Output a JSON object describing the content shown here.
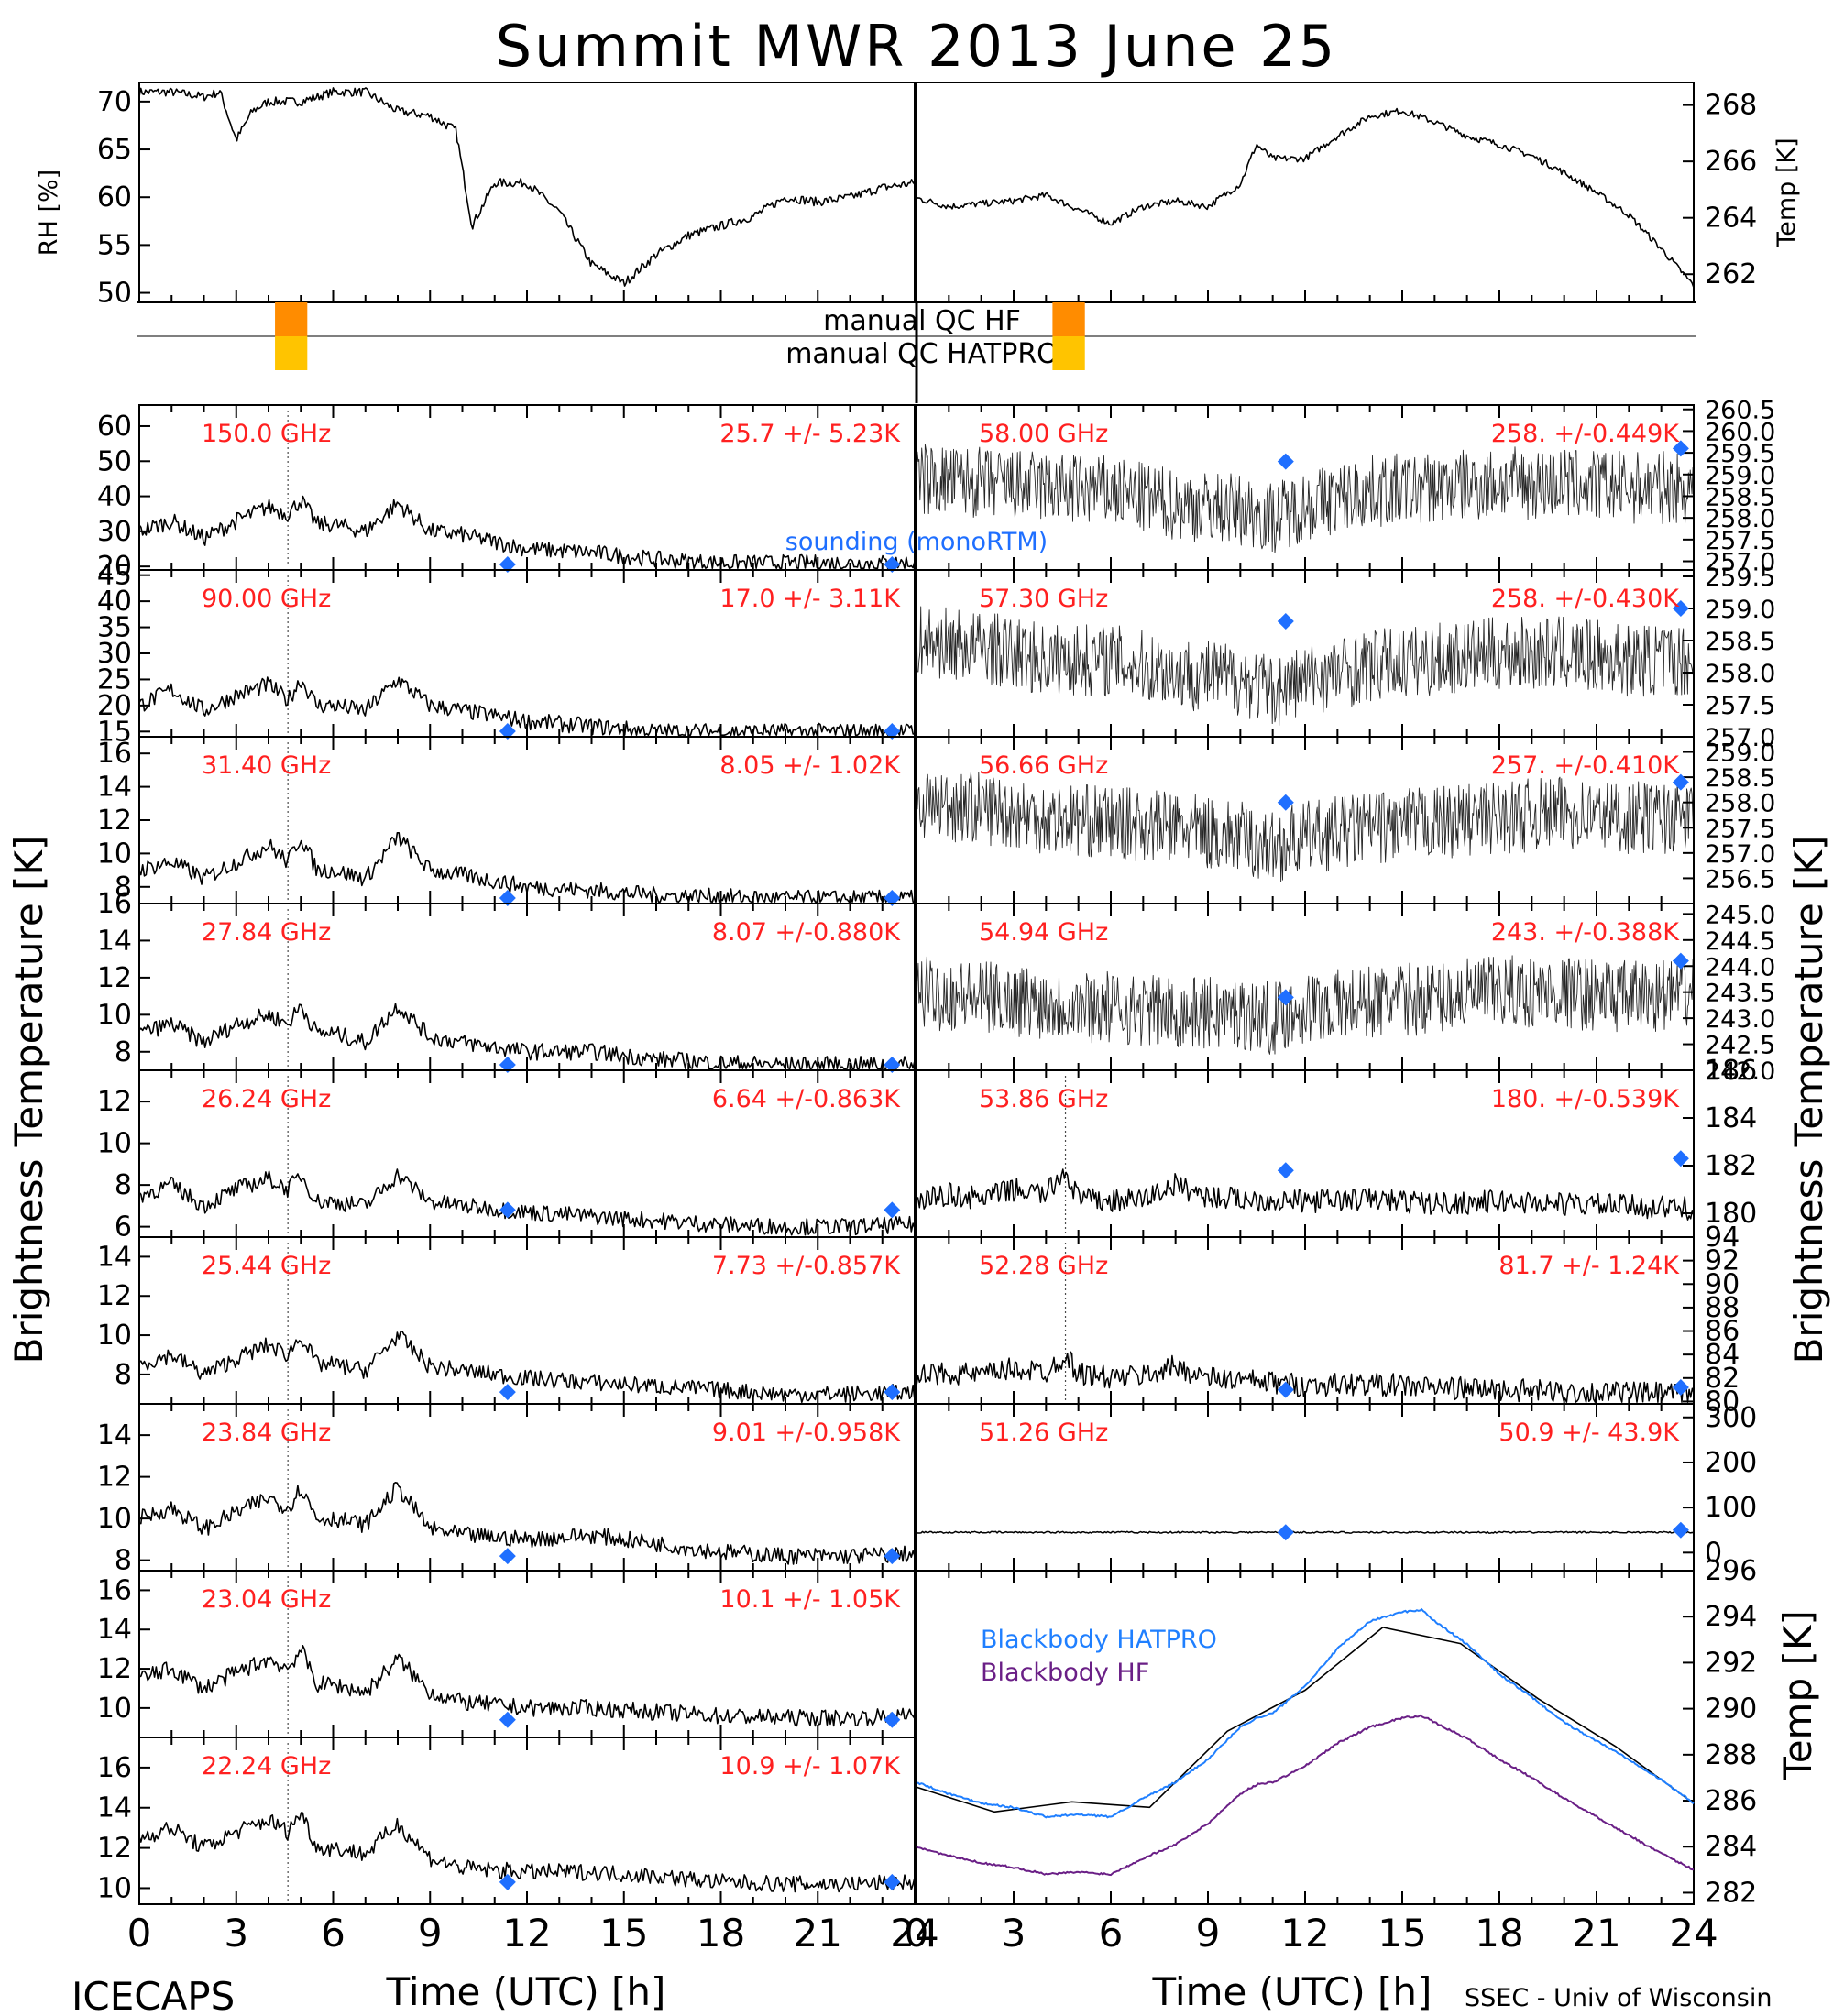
{
  "title": "Summit MWR 2013 June 25",
  "footer": {
    "left": "ICECAPS",
    "right": "SSEC - Univ of Wisconsin"
  },
  "colors": {
    "label_red": "#ff2020",
    "sounding_blue": "#1f6fff",
    "hatpro": "#1f7fff",
    "hf": "#6a1f86",
    "qc_hf": "#ff8c00",
    "qc_hatpro": "#ffc400"
  },
  "axis_labels": {
    "brightness": "Brightness Temperature [K]",
    "time": "Time (UTC) [h]",
    "rh": "RH [%]",
    "temp": "Temp [K]"
  },
  "qc": {
    "hf_label": "manual QC HF",
    "hatpro_label": "manual QC HATPRO"
  },
  "sounding_label": "sounding (monoRTM)",
  "chart_data": [
    {
      "type": "line",
      "panel": "rh",
      "xlabel": "",
      "ylabel": "RH [%]",
      "xlim": [
        0,
        24
      ],
      "ylim": [
        49,
        72
      ],
      "yticks": [
        "70",
        "65",
        "60",
        "55",
        "50"
      ],
      "x": [
        0,
        1,
        2,
        2.5,
        3,
        3.5,
        4,
        5,
        6,
        7,
        8,
        9,
        9.8,
        10.3,
        11,
        12,
        13,
        14,
        15,
        16,
        17,
        18,
        19,
        20,
        21,
        22,
        23,
        24
      ],
      "values": [
        71,
        71,
        70.5,
        71,
        66,
        69,
        70,
        70,
        71,
        71,
        69,
        68.5,
        67,
        57,
        61.5,
        61.5,
        58.5,
        53,
        51,
        54,
        56,
        57,
        58,
        60,
        59.5,
        60,
        61,
        61.5
      ]
    },
    {
      "type": "line",
      "panel": "temp",
      "xlabel": "",
      "ylabel": "Temp [K]",
      "xlim": [
        0,
        24
      ],
      "ylim": [
        261,
        268.8
      ],
      "yticks": [
        "268",
        "266",
        "264",
        "262"
      ],
      "x": [
        0,
        1,
        2,
        3,
        4,
        5,
        6,
        7,
        8,
        9,
        10,
        10.5,
        11,
        12,
        13,
        14,
        15,
        16,
        17,
        18,
        19,
        20,
        21,
        22,
        23,
        24
      ],
      "values": [
        264.7,
        264.4,
        264.5,
        264.6,
        264.8,
        264.3,
        263.8,
        264.4,
        264.6,
        264.4,
        265.2,
        266.6,
        266.1,
        266.1,
        266.9,
        267.6,
        267.8,
        267.4,
        266.9,
        266.6,
        266.2,
        265.6,
        264.9,
        264.1,
        262.9,
        261.6
      ]
    },
    {
      "type": "line",
      "panel": "L1",
      "channel": "150.0 GHz",
      "stat": "25.7 +/- 5.23K",
      "ylim": [
        19,
        66
      ],
      "yticks": [
        "60",
        "50",
        "40",
        "30",
        "20"
      ],
      "x": [
        0,
        1,
        2,
        3,
        4,
        4.6,
        5,
        5.5,
        6,
        7,
        8,
        9,
        10,
        12,
        14,
        16,
        18,
        20,
        22,
        24
      ],
      "values": [
        30,
        33,
        28,
        33,
        37,
        35,
        39,
        32,
        32,
        30,
        38,
        30,
        29,
        25,
        24,
        22,
        21,
        21,
        21,
        21
      ],
      "sounding": [
        [
          11.4,
          20.5
        ],
        [
          23.3,
          20.5
        ]
      ]
    },
    {
      "type": "line",
      "panel": "L2",
      "channel": "90.00 GHz",
      "stat": "17.0 +/- 3.11K",
      "ylim": [
        14,
        46
      ],
      "yticks": [
        "45",
        "40",
        "35",
        "30",
        "25",
        "20",
        "15"
      ],
      "x": [
        0,
        1,
        2,
        3,
        4,
        4.6,
        5,
        5.5,
        6,
        7,
        8,
        9,
        10,
        12,
        14,
        16,
        18,
        20,
        22,
        24
      ],
      "values": [
        20,
        23,
        19,
        22,
        24,
        21,
        25,
        20,
        20,
        19,
        25,
        20,
        19,
        17,
        16,
        15,
        15,
        15,
        15,
        15
      ],
      "sounding": [
        [
          11.4,
          14.8
        ],
        [
          23.3,
          14.8
        ]
      ]
    },
    {
      "type": "line",
      "panel": "L3",
      "channel": "31.40 GHz",
      "stat": "8.05 +/- 1.02K",
      "ylim": [
        7,
        17
      ],
      "yticks": [
        "16",
        "14",
        "12",
        "10",
        "8"
      ],
      "x": [
        0,
        1,
        2,
        3,
        4,
        4.6,
        5,
        5.5,
        6,
        7,
        8,
        9,
        10,
        12,
        14,
        16,
        18,
        20,
        22,
        24
      ],
      "values": [
        9,
        9.5,
        8.5,
        9.5,
        10.5,
        9.5,
        11,
        9,
        9,
        8.5,
        11,
        9,
        8.7,
        8,
        7.8,
        7.5,
        7.4,
        7.3,
        7.3,
        7.3
      ],
      "sounding": [
        [
          11.4,
          7.3
        ],
        [
          23.3,
          7.3
        ]
      ]
    },
    {
      "type": "line",
      "panel": "L4",
      "channel": "27.84 GHz",
      "stat": "8.07 +/-0.880K",
      "ylim": [
        7,
        16
      ],
      "yticks": [
        "16",
        "14",
        "12",
        "10",
        "8"
      ],
      "x": [
        0,
        1,
        2,
        3,
        4,
        4.6,
        5,
        5.5,
        6,
        7,
        8,
        9,
        10,
        12,
        14,
        16,
        18,
        20,
        22,
        24
      ],
      "values": [
        9,
        9.5,
        8.5,
        9.5,
        10,
        9.5,
        10.5,
        9,
        9,
        8.5,
        10.5,
        8.8,
        8.5,
        8,
        8,
        7.6,
        7.4,
        7.3,
        7.3,
        7.3
      ],
      "sounding": [
        [
          11.4,
          7.2
        ],
        [
          23.3,
          7.2
        ]
      ]
    },
    {
      "type": "line",
      "panel": "L5",
      "channel": "26.24 GHz",
      "stat": "6.64 +/-0.863K",
      "ylim": [
        5.5,
        13.5
      ],
      "yticks": [
        "12",
        "10",
        "8",
        "6"
      ],
      "x": [
        0,
        1,
        2,
        3,
        4,
        4.6,
        5,
        5.5,
        6,
        7,
        8,
        9,
        10,
        12,
        14,
        16,
        18,
        20,
        22,
        24
      ],
      "values": [
        7.5,
        8,
        7,
        7.8,
        8.3,
        7.8,
        8.5,
        7.2,
        7.2,
        7,
        8.5,
        7.2,
        7,
        6.7,
        6.5,
        6.3,
        6.1,
        6,
        6,
        6.1
      ],
      "sounding": [
        [
          11.4,
          6.8
        ],
        [
          23.3,
          6.8
        ]
      ]
    },
    {
      "type": "line",
      "panel": "L6",
      "channel": "25.44 GHz",
      "stat": "7.73 +/-0.857K",
      "ylim": [
        6.5,
        15
      ],
      "yticks": [
        "14",
        "12",
        "10",
        "8"
      ],
      "x": [
        0,
        1,
        2,
        3,
        4,
        4.6,
        5,
        5.5,
        6,
        7,
        8,
        9,
        10,
        12,
        14,
        16,
        18,
        20,
        22,
        24
      ],
      "values": [
        8.5,
        9,
        8,
        8.8,
        9.5,
        9,
        10,
        8.5,
        8.5,
        8.2,
        10,
        8.4,
        8.2,
        7.8,
        7.6,
        7.4,
        7.2,
        7,
        7,
        7.1
      ],
      "sounding": [
        [
          11.4,
          7.1
        ],
        [
          23.3,
          7.1
        ]
      ]
    },
    {
      "type": "line",
      "panel": "L7",
      "channel": "23.84 GHz",
      "stat": "9.01 +/-0.958K",
      "ylim": [
        7.5,
        15.5
      ],
      "yticks": [
        "14",
        "12",
        "10",
        "8"
      ],
      "x": [
        0,
        1,
        2,
        3,
        4,
        4.6,
        5,
        5.5,
        6,
        7,
        8,
        9,
        10,
        12,
        14,
        16,
        18,
        20,
        22,
        24
      ],
      "values": [
        10,
        10.5,
        9.5,
        10.3,
        11,
        10.5,
        11.5,
        10,
        10,
        9.7,
        11.5,
        9.5,
        9.2,
        9,
        9.2,
        8.8,
        8.4,
        8.2,
        8.2,
        8.3
      ],
      "sounding": [
        [
          11.4,
          8.2
        ],
        [
          23.3,
          8.2
        ]
      ]
    },
    {
      "type": "line",
      "panel": "L8",
      "channel": "23.04 GHz",
      "stat": "10.1 +/- 1.05K",
      "ylim": [
        8.5,
        17
      ],
      "yticks": [
        "16",
        "14",
        "12",
        "10"
      ],
      "x": [
        0,
        1,
        2,
        3,
        4,
        4.6,
        5,
        5.5,
        6,
        7,
        8,
        9,
        10,
        12,
        14,
        16,
        18,
        20,
        22,
        24
      ],
      "values": [
        11.5,
        12,
        11,
        11.8,
        12.5,
        12,
        13,
        11.2,
        11.2,
        10.8,
        12.5,
        10.8,
        10.3,
        10,
        10,
        9.8,
        9.6,
        9.5,
        9.5,
        9.6
      ],
      "sounding": [
        [
          11.4,
          9.4
        ],
        [
          23.3,
          9.4
        ]
      ]
    },
    {
      "type": "line",
      "panel": "L9",
      "channel": "22.24 GHz",
      "stat": "10.9 +/- 1.07K",
      "ylim": [
        9.2,
        17.5
      ],
      "yticks": [
        "16",
        "14",
        "12",
        "10"
      ],
      "x": [
        0,
        1,
        2,
        3,
        4,
        4.6,
        5,
        5.5,
        6,
        7,
        8,
        9,
        10,
        12,
        14,
        16,
        18,
        20,
        22,
        24
      ],
      "values": [
        12.5,
        13,
        12,
        12.8,
        13.4,
        12.8,
        13.8,
        12,
        12,
        11.7,
        13.2,
        11.5,
        11,
        10.8,
        10.8,
        10.6,
        10.3,
        10.2,
        10.2,
        10.3
      ],
      "sounding": [
        [
          11.4,
          10.3
        ],
        [
          23.3,
          10.3
        ]
      ]
    },
    {
      "type": "line",
      "panel": "R1",
      "channel": "58.00 GHz",
      "stat": "258. +/-0.449K",
      "ylim": [
        256.8,
        260.6
      ],
      "yticks": [
        "260.5",
        "260.0",
        "259.5",
        "259.0",
        "258.5",
        "258.0",
        "257.5",
        "257.0"
      ],
      "x": [
        0,
        2,
        4,
        6,
        8,
        10,
        11,
        12,
        14,
        16,
        18,
        20,
        22,
        24
      ],
      "values": [
        258.9,
        258.8,
        258.7,
        258.6,
        258.3,
        258.2,
        258.0,
        258.3,
        258.6,
        258.7,
        258.8,
        258.8,
        258.7,
        258.7
      ],
      "sounding": [
        [
          11.4,
          259.3
        ],
        [
          23.6,
          259.6
        ]
      ]
    },
    {
      "type": "line",
      "panel": "R2",
      "channel": "57.30 GHz",
      "stat": "258. +/-0.430K",
      "ylim": [
        257.0,
        259.6
      ],
      "yticks": [
        "259.5",
        "259.0",
        "258.5",
        "258.0",
        "257.5",
        "257.0"
      ],
      "x": [
        0,
        2,
        4,
        6,
        8,
        10,
        11,
        12,
        14,
        16,
        18,
        20,
        22,
        24
      ],
      "values": [
        258.5,
        258.4,
        258.2,
        258.2,
        258.0,
        257.9,
        257.7,
        257.9,
        258.1,
        258.2,
        258.3,
        258.3,
        258.2,
        258.2
      ],
      "sounding": [
        [
          11.4,
          258.8
        ],
        [
          23.6,
          259.0
        ]
      ]
    },
    {
      "type": "line",
      "panel": "R3",
      "channel": "56.66 GHz",
      "stat": "257. +/-0.410K",
      "ylim": [
        256.0,
        259.3
      ],
      "yticks": [
        "259.0",
        "258.5",
        "258.0",
        "257.5",
        "257.0",
        "256.5"
      ],
      "x": [
        0,
        2,
        4,
        6,
        8,
        10,
        11,
        12,
        14,
        16,
        18,
        20,
        22,
        24
      ],
      "values": [
        258.0,
        257.9,
        257.7,
        257.6,
        257.5,
        257.3,
        257.1,
        257.3,
        257.5,
        257.6,
        257.7,
        257.8,
        257.7,
        257.7
      ],
      "sounding": [
        [
          11.4,
          258.0
        ],
        [
          23.6,
          258.4
        ]
      ]
    },
    {
      "type": "line",
      "panel": "R4",
      "channel": "54.94 GHz",
      "stat": "243. +/-0.388K",
      "ylim": [
        242.0,
        245.2
      ],
      "yticks": [
        "245.0",
        "244.5",
        "244.0",
        "243.5",
        "243.0",
        "242.5",
        "242.0"
      ],
      "x": [
        0,
        2,
        4,
        6,
        8,
        10,
        11,
        12,
        14,
        16,
        18,
        20,
        22,
        24
      ],
      "values": [
        243.5,
        243.4,
        243.3,
        243.2,
        243.1,
        243.1,
        243.0,
        243.2,
        243.3,
        243.4,
        243.5,
        243.5,
        243.4,
        243.5
      ],
      "sounding": [
        [
          11.4,
          243.4
        ],
        [
          23.6,
          244.1
        ]
      ]
    },
    {
      "type": "line",
      "panel": "R5",
      "channel": "53.86 GHz",
      "stat": "180. +/-0.539K",
      "ylim": [
        179.0,
        186.0
      ],
      "yticks": [
        "186",
        "184",
        "182",
        "180"
      ],
      "x": [
        0,
        1,
        2,
        3,
        4,
        4.6,
        5,
        6,
        7,
        8,
        9,
        10,
        12,
        14,
        16,
        18,
        20,
        22,
        24
      ],
      "values": [
        180.5,
        180.8,
        180.6,
        181.0,
        180.8,
        181.8,
        180.6,
        180.5,
        180.6,
        181.2,
        180.7,
        180.6,
        180.5,
        180.6,
        180.4,
        180.5,
        180.4,
        180.3,
        180.2
      ],
      "sounding": [
        [
          11.4,
          181.8
        ],
        [
          23.6,
          182.3
        ]
      ]
    },
    {
      "type": "line",
      "panel": "R6",
      "channel": "52.28 GHz",
      "stat": "81.7 +/- 1.24K",
      "ylim": [
        79.8,
        94.0
      ],
      "yticks": [
        "94",
        "92",
        "90",
        "88",
        "86",
        "84",
        "82",
        "80"
      ],
      "x": [
        0,
        1,
        2,
        3,
        4,
        4.6,
        5,
        6,
        7,
        8,
        9,
        10,
        12,
        14,
        16,
        18,
        20,
        22,
        24
      ],
      "values": [
        82.0,
        82.5,
        82.2,
        82.8,
        82.5,
        84.0,
        82.4,
        82.0,
        82.2,
        83.0,
        82.0,
        81.8,
        81.4,
        81.5,
        81.2,
        81.0,
        80.8,
        80.7,
        80.6
      ],
      "sounding": [
        [
          11.4,
          81.0
        ],
        [
          23.6,
          81.2
        ]
      ]
    },
    {
      "type": "line",
      "panel": "R7",
      "channel": "51.26 GHz",
      "stat": "50.9 +/- 43.9K",
      "ylim": [
        -40,
        330
      ],
      "yticks": [
        "300",
        "200",
        "100",
        "0"
      ],
      "x": [
        0,
        4,
        8,
        12,
        16,
        20,
        24
      ],
      "values": [
        45,
        45,
        45,
        45,
        45,
        45,
        45
      ],
      "sounding": [
        [
          11.4,
          45
        ],
        [
          23.6,
          50
        ]
      ]
    },
    {
      "type": "line",
      "panel": "blackbody",
      "ylabel": "Temp [K]",
      "xlim": [
        0,
        24
      ],
      "ylim": [
        281.5,
        296
      ],
      "yticks": [
        "296",
        "294",
        "292",
        "290",
        "288",
        "286",
        "284",
        "282"
      ],
      "x": [
        0,
        1,
        2,
        3,
        4,
        5,
        6,
        7,
        8,
        9,
        10,
        10.5,
        11,
        12,
        13,
        14,
        15,
        15.6,
        16,
        17,
        18,
        19,
        20,
        21,
        22,
        23,
        24
      ],
      "series": [
        {
          "name": "Blackbody HATPRO",
          "values": [
            286.8,
            286.3,
            285.9,
            285.7,
            285.3,
            285.4,
            285.3,
            286.1,
            286.8,
            287.8,
            289.2,
            289.6,
            289.8,
            291.0,
            292.6,
            293.8,
            294.2,
            294.3,
            293.8,
            292.8,
            291.5,
            290.5,
            289.4,
            288.6,
            287.8,
            286.9,
            285.9
          ]
        },
        {
          "name": "Blackbody HF",
          "values": [
            284.0,
            283.6,
            283.3,
            283.1,
            282.8,
            282.9,
            282.8,
            283.5,
            284.1,
            285.0,
            286.3,
            286.7,
            286.8,
            287.5,
            288.5,
            289.2,
            289.6,
            289.7,
            289.4,
            288.7,
            287.8,
            287.0,
            286.1,
            285.3,
            284.5,
            283.7,
            283.0
          ]
        }
      ]
    }
  ],
  "xticks": [
    "0",
    "3",
    "6",
    "9",
    "12",
    "15",
    "18",
    "21",
    "24"
  ]
}
